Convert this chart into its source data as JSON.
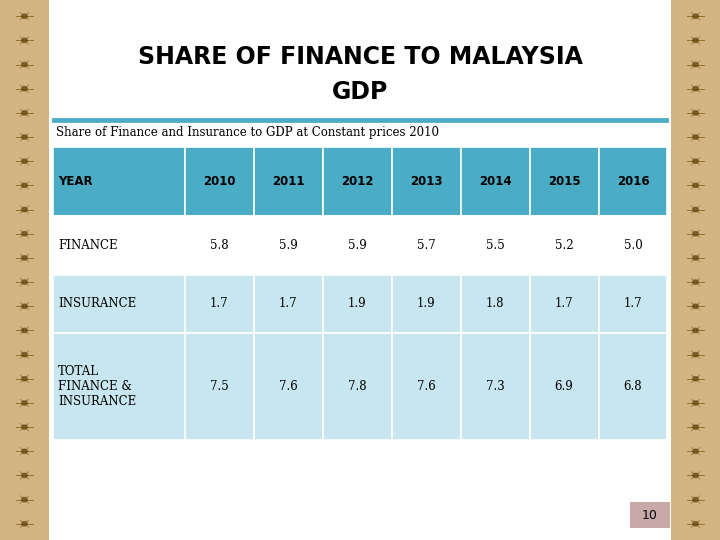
{
  "title_line1": "SHARE OF FINANCE TO MALAYSIA",
  "title_line2": "GDP",
  "subtitle": "Share of Finance and Insurance to GDP at Constant prices 2010",
  "header_row": [
    "YEAR",
    "2010",
    "2011",
    "2012",
    "2013",
    "2014",
    "2015",
    "2016"
  ],
  "rows": [
    [
      "FINANCE",
      "5.8",
      "5.9",
      "5.9",
      "5.7",
      "5.5",
      "5.2",
      "5.0"
    ],
    [
      "INSURANCE",
      "1.7",
      "1.7",
      "1.9",
      "1.9",
      "1.8",
      "1.7",
      "1.7"
    ],
    [
      "TOTAL\nFINANCE &\nINSURANCE",
      "7.5",
      "7.6",
      "7.8",
      "7.6",
      "7.3",
      "6.9",
      "6.8"
    ]
  ],
  "header_bg": "#4BACC6",
  "row_bg_light": "#C8E6EF",
  "row_bg_white": "#FFFFFF",
  "header_text_color": "#000000",
  "cell_text_color": "#000000",
  "title_color": "#000000",
  "subtitle_color": "#000000",
  "divider_color": "#4BACC6",
  "page_number": "10",
  "background_color": "#FFFFFF",
  "border_bg_color": "#D4B483",
  "page_num_bg": "#C9A8A8"
}
